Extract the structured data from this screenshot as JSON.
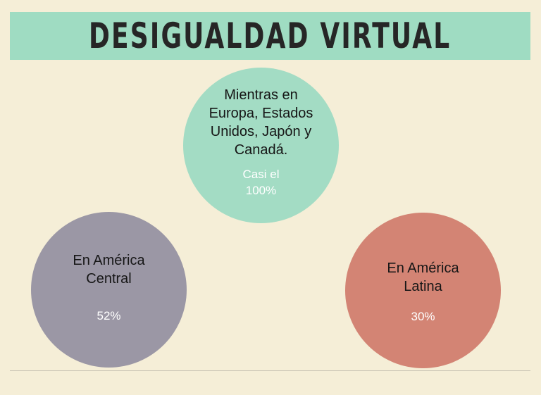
{
  "title": "DESIGUALDAD VIRTUAL",
  "circles": {
    "top": {
      "label": "Mientras en Europa, Estados Unidos, Japón y Canadá.",
      "value": "Casi el 100%"
    },
    "left": {
      "label": "En América Central",
      "value": "52%"
    },
    "right": {
      "label": "En América Latina",
      "value": "30%"
    }
  },
  "colors": {
    "background": "#f5eed7",
    "banner": "#9fdcc2",
    "circle_top": "#a3dcc4",
    "circle_left": "#9b97a5",
    "circle_right": "#d38474"
  }
}
